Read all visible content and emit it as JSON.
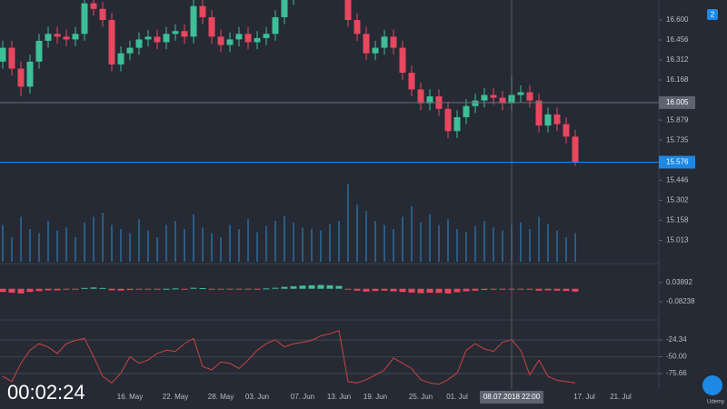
{
  "chart_data": {
    "type": "candlestick",
    "categories": [
      null,
      null,
      null,
      null,
      null,
      null,
      null,
      null,
      null,
      null,
      null,
      null,
      null,
      null,
      "16. May",
      null,
      null,
      null,
      null,
      "22. May",
      null,
      null,
      null,
      null,
      "28. May",
      null,
      null,
      null,
      "03. Jun",
      null,
      null,
      null,
      null,
      "07. Jun",
      null,
      null,
      null,
      "13. Jun",
      null,
      null,
      null,
      "19. Jun",
      null,
      null,
      null,
      null,
      "25. Jun",
      null,
      null,
      null,
      "01. Jul",
      null,
      null,
      null,
      null,
      null,
      "08.07.2018 22:00",
      null,
      null,
      null,
      null,
      null,
      null,
      null,
      "17. Jul",
      null,
      null,
      null,
      "21. Jul",
      null
    ],
    "open": [
      16.3,
      16.4,
      16.25,
      16.12,
      16.3,
      16.45,
      16.5,
      16.48,
      16.46,
      16.5,
      16.72,
      16.68,
      16.6,
      16.28,
      16.36,
      16.4,
      16.46,
      16.48,
      16.44,
      16.5,
      16.52,
      16.48,
      16.7,
      16.62,
      16.48,
      16.42,
      16.46,
      16.5,
      16.44,
      16.47,
      16.5,
      16.62,
      16.76,
      16.8,
      16.88,
      16.86,
      16.9,
      16.88,
      16.86,
      16.6,
      16.5,
      16.36,
      16.4,
      16.48,
      16.4,
      16.22,
      16.1,
      16.0,
      16.05,
      15.96,
      15.8,
      15.9,
      15.98,
      16.02,
      16.06,
      16.04,
      16.0,
      16.06,
      16.08,
      16.02,
      15.84,
      15.92,
      15.85,
      15.76,
      null,
      null,
      null,
      null,
      null,
      null
    ],
    "high": [
      16.45,
      16.45,
      16.3,
      16.35,
      16.5,
      16.55,
      16.55,
      16.53,
      16.55,
      16.77,
      16.77,
      16.73,
      16.65,
      16.41,
      16.45,
      16.51,
      16.53,
      16.53,
      16.55,
      16.57,
      16.57,
      16.75,
      16.75,
      16.67,
      16.53,
      16.51,
      16.55,
      16.55,
      16.52,
      16.55,
      16.67,
      16.81,
      16.85,
      16.93,
      16.93,
      16.95,
      16.95,
      16.93,
      16.91,
      16.65,
      16.55,
      16.45,
      16.53,
      16.53,
      16.45,
      16.27,
      16.15,
      16.1,
      16.1,
      16.01,
      15.95,
      16.03,
      16.07,
      16.11,
      16.11,
      16.09,
      16.2,
      16.13,
      16.13,
      16.07,
      15.97,
      15.97,
      15.9,
      15.81,
      null,
      null,
      null,
      null,
      null,
      null
    ],
    "low": [
      16.25,
      16.2,
      16.05,
      16.07,
      16.25,
      16.4,
      16.43,
      16.41,
      16.41,
      16.45,
      16.63,
      16.55,
      16.23,
      16.23,
      16.31,
      16.35,
      16.41,
      16.39,
      16.39,
      16.45,
      16.43,
      16.43,
      16.57,
      16.43,
      16.37,
      16.37,
      16.41,
      16.39,
      16.39,
      16.42,
      16.45,
      16.57,
      16.71,
      16.75,
      16.81,
      16.81,
      16.83,
      16.81,
      16.55,
      16.45,
      16.31,
      16.31,
      16.35,
      16.35,
      16.17,
      16.05,
      15.95,
      15.95,
      15.91,
      15.75,
      15.75,
      15.85,
      15.93,
      15.97,
      15.99,
      15.95,
      15.95,
      16.01,
      15.97,
      15.79,
      15.79,
      15.8,
      15.71,
      15.55,
      null,
      null,
      null,
      null,
      null,
      null
    ],
    "close": [
      16.4,
      16.25,
      16.12,
      16.3,
      16.45,
      16.5,
      16.48,
      16.46,
      16.5,
      16.72,
      16.68,
      16.6,
      16.28,
      16.36,
      16.4,
      16.46,
      16.48,
      16.44,
      16.5,
      16.52,
      16.48,
      16.7,
      16.62,
      16.48,
      16.42,
      16.46,
      16.5,
      16.44,
      16.47,
      16.5,
      16.62,
      16.76,
      16.8,
      16.88,
      16.86,
      16.9,
      16.88,
      16.86,
      16.6,
      16.5,
      16.36,
      16.4,
      16.48,
      16.4,
      16.22,
      16.1,
      16.0,
      16.05,
      15.96,
      15.8,
      15.9,
      15.98,
      16.02,
      16.06,
      16.04,
      16.0,
      16.06,
      16.08,
      16.02,
      15.84,
      15.92,
      15.85,
      15.76,
      15.576,
      null,
      null,
      null,
      null,
      null,
      null
    ],
    "colors": {
      "up": "#3dbf98",
      "down": "#e8475f"
    },
    "ylim": [
      14.846,
      16.744
    ],
    "yticks": [
      {
        "value": 16.6,
        "label": "16.600"
      },
      16.456,
      16.312,
      16.168,
      15.879,
      15.735,
      15.446,
      15.302,
      15.158,
      15.013
    ],
    "crosshair": {
      "index": 56,
      "price": 16.005
    },
    "last_price": 15.576,
    "volume": {
      "color": "#2b7fb8",
      "vlim": [
        0,
        100
      ],
      "values": [
        45,
        30,
        55,
        40,
        35,
        50,
        38,
        42,
        30,
        48,
        55,
        60,
        45,
        40,
        35,
        52,
        38,
        30,
        45,
        50,
        40,
        58,
        42,
        35,
        30,
        45,
        40,
        52,
        36,
        44,
        50,
        56,
        48,
        42,
        40,
        38,
        46,
        50,
        95,
        70,
        62,
        50,
        45,
        40,
        55,
        68,
        48,
        58,
        45,
        52,
        40,
        36,
        44,
        50,
        42,
        38,
        45,
        48,
        40,
        55,
        46,
        38,
        30,
        35,
        null,
        null,
        null,
        null,
        null,
        null
      ]
    },
    "macd": {
      "type": "bar",
      "ylim": [
        -0.198,
        0.16
      ],
      "yticks": [
        0.03892,
        -0.08238
      ],
      "values": [
        -0.02,
        -0.025,
        -0.03,
        -0.02,
        -0.015,
        -0.01,
        -0.01,
        -0.005,
        -0.005,
        0.005,
        0.008,
        0.005,
        -0.01,
        -0.012,
        -0.008,
        -0.005,
        -0.003,
        -0.004,
        0,
        0.002,
        -0.002,
        0.006,
        0.004,
        -0.002,
        -0.004,
        -0.003,
        -0.002,
        -0.003,
        -0.002,
        0.002,
        0.006,
        0.012,
        0.016,
        0.02,
        0.022,
        0.024,
        0.022,
        0.018,
        -0.005,
        -0.012,
        -0.018,
        -0.014,
        -0.012,
        -0.016,
        -0.02,
        -0.024,
        -0.028,
        -0.025,
        -0.026,
        -0.03,
        -0.022,
        -0.016,
        -0.012,
        -0.008,
        -0.006,
        -0.005,
        -0.004,
        -0.003,
        -0.006,
        -0.012,
        -0.01,
        -0.012,
        -0.014,
        -0.018,
        null,
        null,
        null,
        null,
        null,
        null
      ]
    },
    "williams": {
      "type": "line",
      "color": "#c9453f",
      "ylim": [
        -100,
        0
      ],
      "yticks": [
        -24.34,
        {
          "value": -50,
          "label": "-50.00"
        },
        -75.66
      ],
      "values": [
        -80,
        -88,
        -60,
        -40,
        -30,
        -35,
        -45,
        -30,
        -25,
        -22,
        -50,
        -80,
        -90,
        -75,
        -50,
        -60,
        -55,
        -45,
        -40,
        -42,
        -30,
        -22,
        -65,
        -70,
        -58,
        -60,
        -68,
        -55,
        -40,
        -30,
        -24,
        -35,
        -30,
        -28,
        -25,
        -18,
        -15,
        -10,
        -88,
        -90,
        -85,
        -78,
        -70,
        -52,
        -60,
        -68,
        -85,
        -90,
        -92,
        -85,
        -75,
        -40,
        -30,
        -38,
        -42,
        -28,
        -24,
        -40,
        -78,
        -55,
        -80,
        -86,
        -88,
        -90,
        null,
        null,
        null,
        null,
        null,
        null
      ]
    }
  },
  "overlay": {
    "timer": "00:02:24",
    "badge": "2",
    "watermark": "Udemy"
  }
}
